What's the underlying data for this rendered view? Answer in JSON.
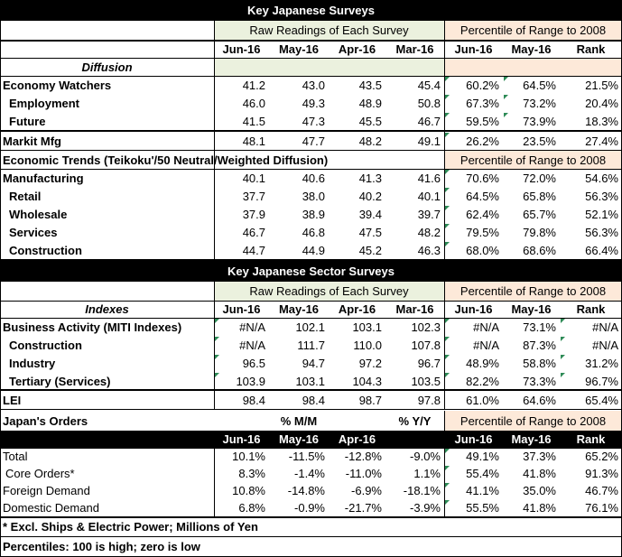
{
  "section1": {
    "title": "Key Japanese Surveys",
    "raw_label": "Raw Readings of Each Survey",
    "pct_label": "Percentile of Range to 2008",
    "columns": [
      "Jun-16",
      "May-16",
      "Apr-16",
      "Mar-16",
      "Jun-16",
      "May-16",
      "Rank"
    ],
    "diffusion_label": "Diffusion",
    "rows": [
      {
        "label": "Economy Watchers",
        "values": [
          "41.2",
          "43.0",
          "43.5",
          "45.4",
          "60.2%",
          "64.5%",
          "21.5%"
        ]
      },
      {
        "label": "Employment",
        "values": [
          "46.0",
          "49.3",
          "48.9",
          "50.8",
          "67.3%",
          "73.2%",
          "20.4%"
        ]
      },
      {
        "label": "Future",
        "values": [
          "41.5",
          "47.3",
          "45.5",
          "46.7",
          "59.5%",
          "73.9%",
          "18.3%"
        ]
      },
      {
        "label": "Markit Mfg",
        "values": [
          "48.1",
          "47.7",
          "48.2",
          "49.1",
          "26.2%",
          "23.5%",
          "27.4%"
        ]
      }
    ],
    "trends_label": "Economic Trends (Teikoku'/50 Neutral/Weighted Diffusion)",
    "trends_pct_label": "Percentile of Range to 2008",
    "trends_rows": [
      {
        "label": "Manufacturing",
        "values": [
          "40.1",
          "40.6",
          "41.3",
          "41.6",
          "70.6%",
          "72.0%",
          "54.6%"
        ]
      },
      {
        "label": "Retail",
        "values": [
          "37.7",
          "38.0",
          "40.2",
          "40.1",
          "64.5%",
          "65.8%",
          "56.3%"
        ]
      },
      {
        "label": "Wholesale",
        "values": [
          "37.9",
          "38.9",
          "39.4",
          "39.7",
          "62.4%",
          "65.7%",
          "52.1%"
        ]
      },
      {
        "label": "Services",
        "values": [
          "46.7",
          "46.8",
          "47.5",
          "48.2",
          "79.5%",
          "79.8%",
          "56.3%"
        ]
      },
      {
        "label": "Construction",
        "values": [
          "44.7",
          "44.9",
          "45.2",
          "46.3",
          "68.0%",
          "68.6%",
          "66.4%"
        ]
      }
    ]
  },
  "section2": {
    "title": "Key Japanese Sector Surveys",
    "raw_label": "Raw Readings of Each Survey",
    "pct_label": "Percentile of Range to 2008",
    "indexes_label": "Indexes",
    "columns": [
      "Jun-16",
      "May-16",
      "Apr-16",
      "Mar-16",
      "Jun-16",
      "May-16",
      "Rank"
    ],
    "rows": [
      {
        "label": "Business Activity (MITI Indexes)",
        "values": [
          "#N/A",
          "102.1",
          "103.1",
          "102.3",
          "#N/A",
          "73.1%",
          "#N/A"
        ]
      },
      {
        "label": "Construction",
        "values": [
          "#N/A",
          "111.7",
          "110.0",
          "107.8",
          "#N/A",
          "87.3%",
          "#N/A"
        ]
      },
      {
        "label": "Industry",
        "values": [
          "96.5",
          "94.7",
          "97.2",
          "96.7",
          "48.9%",
          "58.8%",
          "31.2%"
        ]
      },
      {
        "label": "Tertiary (Services)",
        "values": [
          "103.9",
          "103.1",
          "104.3",
          "103.5",
          "82.2%",
          "73.3%",
          "96.7%"
        ]
      },
      {
        "label": "LEI",
        "values": [
          "98.4",
          "98.4",
          "98.7",
          "97.8",
          "61.0%",
          "64.6%",
          "65.4%"
        ]
      }
    ]
  },
  "section3": {
    "title": "Japan's Orders",
    "mm_label": "% M/M",
    "yy_label": "% Y/Y",
    "pct_label": "Percentile of Range to 2008",
    "columns": [
      "Jun-16",
      "May-16",
      "Apr-16",
      "",
      "Jun-16",
      "May-16",
      "Rank"
    ],
    "rows": [
      {
        "label": "Total",
        "values": [
          "10.1%",
          "-11.5%",
          "-12.8%",
          "-9.0%",
          "49.1%",
          "37.3%",
          "65.2%"
        ]
      },
      {
        "label": "Core Orders*",
        "values": [
          "8.3%",
          "-1.4%",
          "-11.0%",
          "1.1%",
          "55.4%",
          "41.8%",
          "91.3%"
        ]
      },
      {
        "label": "Foreign Demand",
        "values": [
          "10.8%",
          "-14.8%",
          "-6.9%",
          "-18.1%",
          "41.1%",
          "35.0%",
          "46.7%"
        ]
      },
      {
        "label": "Domestic Demand",
        "values": [
          "6.8%",
          "-0.9%",
          "-21.7%",
          "-3.9%",
          "55.5%",
          "41.8%",
          "76.1%"
        ]
      }
    ]
  },
  "footnotes": {
    "note1": "* Excl. Ships & Electric Power; Millions of Yen",
    "note2": "Percentiles: 100 is high; zero is low"
  },
  "colors": {
    "header_bg": "#000000",
    "raw_bg": "#ebf1de",
    "pct_bg": "#fde9d9",
    "marker": "#2e8b57"
  }
}
